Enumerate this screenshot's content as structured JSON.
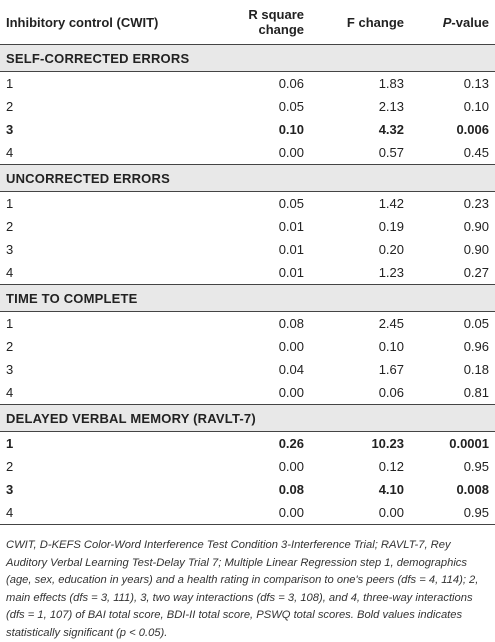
{
  "table": {
    "headers": [
      "Inhibitory control (CWIT)",
      "R square change",
      "F change",
      "-value"
    ],
    "p_prefix": "P",
    "sections": [
      {
        "title": "SELF-CORRECTED ERRORS",
        "rows": [
          {
            "step": "1",
            "r2": "0.06",
            "f": "1.83",
            "p": "0.13",
            "bold": false
          },
          {
            "step": "2",
            "r2": "0.05",
            "f": "2.13",
            "p": "0.10",
            "bold": false
          },
          {
            "step": "3",
            "r2": "0.10",
            "f": "4.32",
            "p": "0.006",
            "bold": true
          },
          {
            "step": "4",
            "r2": "0.00",
            "f": "0.57",
            "p": "0.45",
            "bold": false
          }
        ]
      },
      {
        "title": "UNCORRECTED ERRORS",
        "rows": [
          {
            "step": "1",
            "r2": "0.05",
            "f": "1.42",
            "p": "0.23",
            "bold": false
          },
          {
            "step": "2",
            "r2": "0.01",
            "f": "0.19",
            "p": "0.90",
            "bold": false
          },
          {
            "step": "3",
            "r2": "0.01",
            "f": "0.20",
            "p": "0.90",
            "bold": false
          },
          {
            "step": "4",
            "r2": "0.01",
            "f": "1.23",
            "p": "0.27",
            "bold": false
          }
        ]
      },
      {
        "title": "TIME TO COMPLETE",
        "rows": [
          {
            "step": "1",
            "r2": "0.08",
            "f": "2.45",
            "p": "0.05",
            "bold": false
          },
          {
            "step": "2",
            "r2": "0.00",
            "f": "0.10",
            "p": "0.96",
            "bold": false
          },
          {
            "step": "3",
            "r2": "0.04",
            "f": "1.67",
            "p": "0.18",
            "bold": false
          },
          {
            "step": "4",
            "r2": "0.00",
            "f": "0.06",
            "p": "0.81",
            "bold": false
          }
        ]
      },
      {
        "title": "DELAYED VERBAL MEMORY (RAVLT-7)",
        "rows": [
          {
            "step": "1",
            "r2": "0.26",
            "f": "10.23",
            "p": "0.0001",
            "bold": true
          },
          {
            "step": "2",
            "r2": "0.00",
            "f": "0.12",
            "p": "0.95",
            "bold": false
          },
          {
            "step": "3",
            "r2": "0.08",
            "f": "4.10",
            "p": "0.008",
            "bold": true
          },
          {
            "step": "4",
            "r2": "0.00",
            "f": "0.00",
            "p": "0.95",
            "bold": false
          }
        ]
      }
    ]
  },
  "footnote": "CWIT, D-KEFS Color-Word Interference Test Condition 3-Interference Trial; RAVLT-7, Rey Auditory Verbal Learning Test-Delay Trial 7; Multiple Linear Regression step 1, demographics (age, sex, education in years) and a health rating in comparison to one's peers (dfs = 4, 114); 2, main effects (dfs = 3, 111), 3, two way interactions (dfs = 3, 108), and 4, three-way interactions (dfs = 1, 107) of BAI total score, BDI-II total score, PSWQ total scores. Bold values indicates statistically significant (p < 0.05)."
}
